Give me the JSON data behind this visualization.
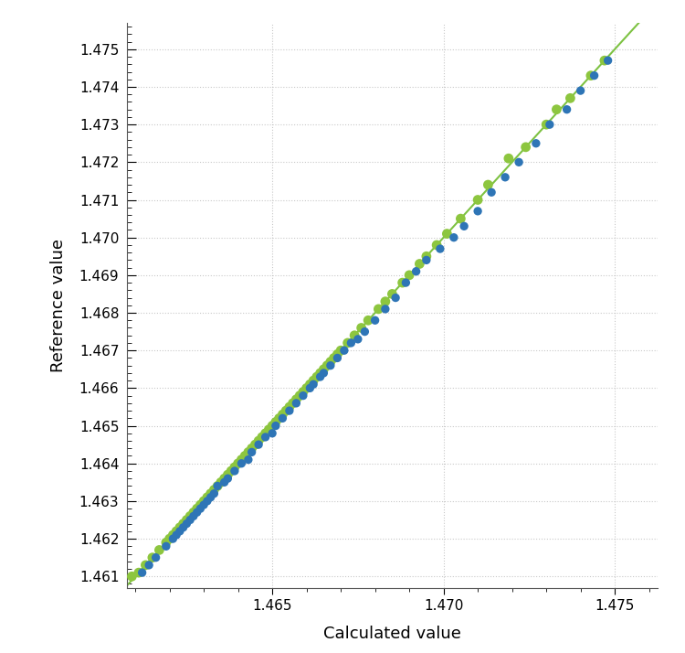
{
  "xlabel": "Calculated value",
  "ylabel": "Reference value",
  "xlim": [
    1.46075,
    1.47625
  ],
  "ylim": [
    1.4607,
    1.4757
  ],
  "xticks": [
    1.465,
    1.47,
    1.475
  ],
  "yticks": [
    1.461,
    1.462,
    1.463,
    1.464,
    1.465,
    1.466,
    1.467,
    1.468,
    1.469,
    1.47,
    1.471,
    1.472,
    1.473,
    1.474,
    1.475
  ],
  "line_color": "#7dc242",
  "blue_color": "#2e75b6",
  "green_color": "#8dc63f",
  "background_color": "#ffffff",
  "grid_color": "#bbbbbb",
  "blue_points": [
    [
      1.4612,
      1.4611
    ],
    [
      1.4614,
      1.4613
    ],
    [
      1.4616,
      1.4615
    ],
    [
      1.4619,
      1.4618
    ],
    [
      1.4621,
      1.462
    ],
    [
      1.4622,
      1.4621
    ],
    [
      1.4623,
      1.4622
    ],
    [
      1.4624,
      1.4623
    ],
    [
      1.4625,
      1.4624
    ],
    [
      1.4626,
      1.4625
    ],
    [
      1.4627,
      1.4626
    ],
    [
      1.4628,
      1.4627
    ],
    [
      1.4629,
      1.4628
    ],
    [
      1.463,
      1.4629
    ],
    [
      1.4631,
      1.463
    ],
    [
      1.4632,
      1.4631
    ],
    [
      1.4633,
      1.4632
    ],
    [
      1.4634,
      1.4634
    ],
    [
      1.4636,
      1.4635
    ],
    [
      1.4637,
      1.4636
    ],
    [
      1.4639,
      1.4638
    ],
    [
      1.4641,
      1.464
    ],
    [
      1.4643,
      1.4641
    ],
    [
      1.4644,
      1.4643
    ],
    [
      1.4646,
      1.4645
    ],
    [
      1.4648,
      1.4647
    ],
    [
      1.465,
      1.4648
    ],
    [
      1.4651,
      1.465
    ],
    [
      1.4653,
      1.4652
    ],
    [
      1.4655,
      1.4654
    ],
    [
      1.4657,
      1.4656
    ],
    [
      1.4659,
      1.4658
    ],
    [
      1.4661,
      1.466
    ],
    [
      1.4662,
      1.4661
    ],
    [
      1.4664,
      1.4663
    ],
    [
      1.4665,
      1.4664
    ],
    [
      1.4667,
      1.4666
    ],
    [
      1.4669,
      1.4668
    ],
    [
      1.4671,
      1.467
    ],
    [
      1.4673,
      1.4672
    ],
    [
      1.4675,
      1.4673
    ],
    [
      1.4677,
      1.4675
    ],
    [
      1.468,
      1.4678
    ],
    [
      1.4683,
      1.4681
    ],
    [
      1.4686,
      1.4684
    ],
    [
      1.4689,
      1.4688
    ],
    [
      1.4692,
      1.4691
    ],
    [
      1.4695,
      1.4694
    ],
    [
      1.4699,
      1.4697
    ],
    [
      1.4703,
      1.47
    ],
    [
      1.4706,
      1.4703
    ],
    [
      1.471,
      1.4707
    ],
    [
      1.4714,
      1.4712
    ],
    [
      1.4718,
      1.4716
    ],
    [
      1.4722,
      1.472
    ],
    [
      1.4727,
      1.4725
    ],
    [
      1.4731,
      1.473
    ],
    [
      1.4736,
      1.4734
    ],
    [
      1.474,
      1.4739
    ],
    [
      1.4744,
      1.4743
    ],
    [
      1.4748,
      1.4747
    ]
  ],
  "green_points": [
    [
      1.4609,
      1.461
    ],
    [
      1.4611,
      1.4611
    ],
    [
      1.4613,
      1.4613
    ],
    [
      1.4615,
      1.4615
    ],
    [
      1.4617,
      1.4617
    ],
    [
      1.4619,
      1.4619
    ],
    [
      1.462,
      1.462
    ],
    [
      1.4621,
      1.4621
    ],
    [
      1.4622,
      1.4622
    ],
    [
      1.4623,
      1.4623
    ],
    [
      1.4624,
      1.4624
    ],
    [
      1.4625,
      1.4625
    ],
    [
      1.4626,
      1.4626
    ],
    [
      1.4627,
      1.4627
    ],
    [
      1.4628,
      1.4628
    ],
    [
      1.4629,
      1.4629
    ],
    [
      1.463,
      1.463
    ],
    [
      1.4631,
      1.4631
    ],
    [
      1.4632,
      1.4632
    ],
    [
      1.4633,
      1.4633
    ],
    [
      1.4634,
      1.4634
    ],
    [
      1.4635,
      1.4635
    ],
    [
      1.4636,
      1.4636
    ],
    [
      1.4637,
      1.4637
    ],
    [
      1.4638,
      1.4638
    ],
    [
      1.4639,
      1.4639
    ],
    [
      1.464,
      1.464
    ],
    [
      1.4641,
      1.4641
    ],
    [
      1.4642,
      1.4642
    ],
    [
      1.4643,
      1.4643
    ],
    [
      1.4644,
      1.4644
    ],
    [
      1.4645,
      1.4645
    ],
    [
      1.4646,
      1.4646
    ],
    [
      1.4647,
      1.4647
    ],
    [
      1.4648,
      1.4648
    ],
    [
      1.4649,
      1.4649
    ],
    [
      1.465,
      1.465
    ],
    [
      1.4651,
      1.4651
    ],
    [
      1.4652,
      1.4652
    ],
    [
      1.4653,
      1.4653
    ],
    [
      1.4654,
      1.4654
    ],
    [
      1.4655,
      1.4655
    ],
    [
      1.4656,
      1.4656
    ],
    [
      1.4657,
      1.4657
    ],
    [
      1.4658,
      1.4658
    ],
    [
      1.4659,
      1.4659
    ],
    [
      1.466,
      1.466
    ],
    [
      1.4661,
      1.4661
    ],
    [
      1.4662,
      1.4662
    ],
    [
      1.4663,
      1.4663
    ],
    [
      1.4664,
      1.4664
    ],
    [
      1.4665,
      1.4665
    ],
    [
      1.4666,
      1.4666
    ],
    [
      1.4667,
      1.4667
    ],
    [
      1.4668,
      1.4668
    ],
    [
      1.4669,
      1.4669
    ],
    [
      1.467,
      1.467
    ],
    [
      1.4672,
      1.4672
    ],
    [
      1.4674,
      1.4674
    ],
    [
      1.4676,
      1.4676
    ],
    [
      1.4678,
      1.4678
    ],
    [
      1.4681,
      1.4681
    ],
    [
      1.4683,
      1.4683
    ],
    [
      1.4685,
      1.4685
    ],
    [
      1.4688,
      1.4688
    ],
    [
      1.469,
      1.469
    ],
    [
      1.4693,
      1.4693
    ],
    [
      1.4695,
      1.4695
    ],
    [
      1.4698,
      1.4698
    ],
    [
      1.4701,
      1.4701
    ],
    [
      1.4705,
      1.4705
    ],
    [
      1.471,
      1.471
    ],
    [
      1.4713,
      1.4714
    ],
    [
      1.4719,
      1.4721
    ],
    [
      1.4724,
      1.4724
    ],
    [
      1.473,
      1.473
    ],
    [
      1.4733,
      1.4734
    ],
    [
      1.4737,
      1.4737
    ],
    [
      1.4743,
      1.4743
    ],
    [
      1.4747,
      1.4747
    ]
  ]
}
